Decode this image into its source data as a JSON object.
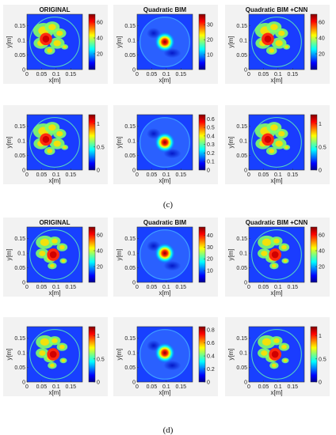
{
  "chart_data": {
    "type": "heatmap",
    "panels": [
      {
        "row": 0,
        "col": 0,
        "title": "ORIGINAL",
        "xlabel": "x[m]",
        "ylabel": "y[m]",
        "xlim": [
          0,
          0.19
        ],
        "ylim": [
          0,
          0.19
        ],
        "xticks": [
          "0",
          "0.05",
          "0.1",
          "0.15"
        ],
        "yticks": [
          "0.15",
          "0.1",
          "0.05",
          "0"
        ],
        "colorbar": {
          "ticks": [
            "60",
            "40",
            "20"
          ],
          "range": [
            0,
            70
          ]
        },
        "scene": {
          "phantom": "c",
          "blob_center": [
            0.065,
            0.105
          ],
          "peak": 70
        }
      },
      {
        "row": 0,
        "col": 1,
        "title": "Quadratic BIM",
        "xlabel": "x[m]",
        "ylabel": "y[m]",
        "xlim": [
          0,
          0.19
        ],
        "ylim": [
          0,
          0.19
        ],
        "xticks": [
          "0",
          "0.05",
          "0.1",
          "0.15"
        ],
        "yticks": [
          "0.15",
          "0.1",
          "0.05",
          "0"
        ],
        "colorbar": {
          "ticks": [
            "30",
            "20",
            "10"
          ],
          "range": [
            0,
            37
          ]
        },
        "scene": {
          "phantom": "recon",
          "blob_center": [
            0.095,
            0.095
          ],
          "peak": 37
        }
      },
      {
        "row": 0,
        "col": 2,
        "title": "Quadratic BIM +CNN",
        "xlabel": "x[m]",
        "ylabel": "y[m]",
        "xlim": [
          0,
          0.19
        ],
        "ylim": [
          0,
          0.19
        ],
        "xticks": [
          "0",
          "0.05",
          "0.1",
          "0.15"
        ],
        "yticks": [
          "0.15",
          "0.1",
          "0.05",
          "0"
        ],
        "colorbar": {
          "ticks": [
            "60",
            "40",
            "20"
          ],
          "range": [
            0,
            70
          ]
        },
        "scene": {
          "phantom": "c",
          "blob_center": [
            0.065,
            0.105
          ],
          "peak": 70
        }
      },
      {
        "row": 1,
        "col": 0,
        "title": "",
        "xlabel": "x[m]",
        "ylabel": "y[m]",
        "xlim": [
          0,
          0.19
        ],
        "ylim": [
          0,
          0.19
        ],
        "xticks": [
          "0",
          "0.05",
          "0.1",
          "0.15"
        ],
        "yticks": [
          "0.15",
          "0.1",
          "0.05",
          "0"
        ],
        "colorbar": {
          "ticks": [
            "1",
            "0.5",
            "0"
          ],
          "range": [
            0,
            1.2
          ]
        },
        "scene": {
          "phantom": "c",
          "blob_center": [
            0.065,
            0.105
          ],
          "peak": 1.2
        }
      },
      {
        "row": 1,
        "col": 1,
        "title": "",
        "xlabel": "x[m]",
        "ylabel": "y[m]",
        "xlim": [
          0,
          0.19
        ],
        "ylim": [
          0,
          0.19
        ],
        "xticks": [
          "0",
          "0.05",
          "0.1",
          "0.15"
        ],
        "yticks": [
          "0.15",
          "0.1",
          "0.05",
          "0"
        ],
        "colorbar": {
          "ticks": [
            "0.6",
            "0.5",
            "0.4",
            "0.3",
            "0.2",
            "0.1",
            "0"
          ],
          "range": [
            0,
            0.65
          ]
        },
        "scene": {
          "phantom": "recon",
          "blob_center": [
            0.095,
            0.095
          ],
          "peak": 0.65
        }
      },
      {
        "row": 1,
        "col": 2,
        "title": "",
        "xlabel": "x[m]",
        "ylabel": "y[m]",
        "xlim": [
          0,
          0.19
        ],
        "ylim": [
          0,
          0.19
        ],
        "xticks": [
          "0",
          "0.05",
          "0.1",
          "0.15"
        ],
        "yticks": [
          "0.15",
          "0.1",
          "0.05",
          "0"
        ],
        "colorbar": {
          "ticks": [
            "1",
            "0.5",
            "0"
          ],
          "range": [
            0,
            1.2
          ]
        },
        "scene": {
          "phantom": "c",
          "blob_center": [
            0.065,
            0.105
          ],
          "peak": 1.2
        }
      },
      {
        "row": 2,
        "col": 0,
        "title": "ORIGINAL",
        "xlabel": "x[m]",
        "ylabel": "y[m]",
        "xlim": [
          0,
          0.19
        ],
        "ylim": [
          0,
          0.19
        ],
        "xticks": [
          "0",
          "0.05",
          "0.1",
          "0.15"
        ],
        "yticks": [
          "0.15",
          "0.1",
          "0.05",
          "0"
        ],
        "colorbar": {
          "ticks": [
            "60",
            "40",
            "20"
          ],
          "range": [
            0,
            70
          ]
        },
        "scene": {
          "phantom": "d",
          "blob_center": [
            0.09,
            0.095
          ],
          "peak": 70
        }
      },
      {
        "row": 2,
        "col": 1,
        "title": "Quadratic BIM",
        "xlabel": "x[m]",
        "ylabel": "y[m]",
        "xlim": [
          0,
          0.19
        ],
        "ylim": [
          0,
          0.19
        ],
        "xticks": [
          "0",
          "0.05",
          "0.1",
          "0.15"
        ],
        "yticks": [
          "0.15",
          "0.1",
          "0.05",
          "0"
        ],
        "colorbar": {
          "ticks": [
            "40",
            "30",
            "20",
            "10"
          ],
          "range": [
            0,
            47
          ]
        },
        "scene": {
          "phantom": "recon",
          "blob_center": [
            0.095,
            0.1
          ],
          "peak": 47
        }
      },
      {
        "row": 2,
        "col": 2,
        "title": "Quadratic BIM +CNN",
        "xlabel": "x[m]",
        "ylabel": "y[m]",
        "xlim": [
          0,
          0.19
        ],
        "ylim": [
          0,
          0.19
        ],
        "xticks": [
          "0",
          "0.05",
          "0.1",
          "0.15"
        ],
        "yticks": [
          "0.15",
          "0.1",
          "0.05",
          "0"
        ],
        "colorbar": {
          "ticks": [
            "60",
            "40",
            "20"
          ],
          "range": [
            0,
            70
          ]
        },
        "scene": {
          "phantom": "d",
          "blob_center": [
            0.09,
            0.095
          ],
          "peak": 70
        }
      },
      {
        "row": 3,
        "col": 0,
        "title": "",
        "xlabel": "x[m]",
        "ylabel": "y[m]",
        "xlim": [
          0,
          0.19
        ],
        "ylim": [
          0,
          0.19
        ],
        "xticks": [
          "0",
          "0.05",
          "0.1",
          "0.15"
        ],
        "yticks": [
          "0.15",
          "0.1",
          "0.05",
          "0"
        ],
        "colorbar": {
          "ticks": [
            "1",
            "0.5",
            "0"
          ],
          "range": [
            0,
            1.2
          ]
        },
        "scene": {
          "phantom": "d",
          "blob_center": [
            0.09,
            0.095
          ],
          "peak": 1.2
        }
      },
      {
        "row": 3,
        "col": 1,
        "title": "",
        "xlabel": "x[m]",
        "ylabel": "y[m]",
        "xlim": [
          0,
          0.19
        ],
        "ylim": [
          0,
          0.19
        ],
        "xticks": [
          "0",
          "0.05",
          "0.1",
          "0.15"
        ],
        "yticks": [
          "0.15",
          "0.1",
          "0.05",
          "0"
        ],
        "colorbar": {
          "ticks": [
            "0.8",
            "0.6",
            "0.4",
            "0.2",
            "0"
          ],
          "range": [
            0,
            0.85
          ]
        },
        "scene": {
          "phantom": "recon",
          "blob_center": [
            0.095,
            0.1
          ],
          "peak": 0.85
        }
      },
      {
        "row": 3,
        "col": 2,
        "title": "",
        "xlabel": "x[m]",
        "ylabel": "y[m]",
        "xlim": [
          0,
          0.19
        ],
        "ylim": [
          0,
          0.19
        ],
        "xticks": [
          "0",
          "0.05",
          "0.1",
          "0.15"
        ],
        "yticks": [
          "0.15",
          "0.1",
          "0.05",
          "0"
        ],
        "colorbar": {
          "ticks": [
            "1",
            "0.5",
            "0"
          ],
          "range": [
            0,
            1.2
          ]
        },
        "scene": {
          "phantom": "d",
          "blob_center": [
            0.09,
            0.095
          ],
          "peak": 1.2
        }
      }
    ],
    "captions": [
      "(c)",
      "(d)"
    ]
  }
}
